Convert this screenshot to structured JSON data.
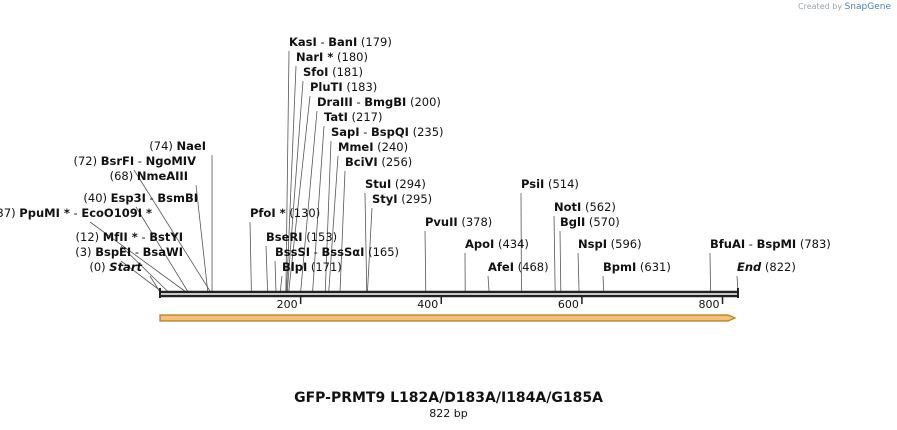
{
  "credit": {
    "prefix": "Created by",
    "brand": "SnapGene"
  },
  "title": "GFP-PRMT9 L182A/D183A/I184A/G185A",
  "length_label": "822 bp",
  "scale": {
    "start": 1,
    "end": 822,
    "ticks": [
      "200",
      "400",
      "600",
      "800"
    ]
  },
  "features": [
    {
      "name": "Start",
      "pos": 0,
      "pos_label": "(0)",
      "style": "italic",
      "side": "left"
    },
    {
      "name": "BspEI",
      "pos": 3,
      "pos_label": "(3)",
      "partner": "BsaWI",
      "side": "left"
    },
    {
      "name": "MfII *",
      "pos": 12,
      "pos_label": "(12)",
      "partner": "BstYI",
      "side": "left"
    },
    {
      "name": "PpuMI *",
      "pos": 37,
      "pos_label": "(37)",
      "partner": "EcoO109I *",
      "side": "left"
    },
    {
      "name": "Esp3I",
      "pos": 40,
      "pos_label": "(40)",
      "partner": "BsmBI",
      "side": "left"
    },
    {
      "name": "NmeAIII",
      "pos": 68,
      "pos_label": "(68)",
      "side": "left"
    },
    {
      "name": "BsrFI",
      "pos": 72,
      "pos_label": "(72)",
      "partner": "NgoMIV",
      "side": "left"
    },
    {
      "name": "NaeI",
      "pos": 74,
      "pos_label": "(74)",
      "side": "left"
    },
    {
      "name": "PfoI *",
      "pos": 130,
      "pos_label": "(130)",
      "side": "right"
    },
    {
      "name": "BseRI",
      "pos": 153,
      "pos_label": "(153)",
      "side": "right"
    },
    {
      "name": "BssSI",
      "pos": 165,
      "pos_label": "(165)",
      "partner": "BssSαI",
      "side": "right"
    },
    {
      "name": "BlpI",
      "pos": 171,
      "pos_label": "(171)",
      "side": "right"
    },
    {
      "name": "KasI",
      "pos": 179,
      "pos_label": "(179)",
      "partner": "BanI",
      "side": "right"
    },
    {
      "name": "NarI *",
      "pos": 180,
      "pos_label": "(180)",
      "side": "right"
    },
    {
      "name": "SfoI",
      "pos": 181,
      "pos_label": "(181)",
      "side": "right"
    },
    {
      "name": "PluTI",
      "pos": 183,
      "pos_label": "(183)",
      "side": "right"
    },
    {
      "name": "DraIII",
      "pos": 200,
      "pos_label": "(200)",
      "partner": "BmgBI",
      "side": "right"
    },
    {
      "name": "TatI",
      "pos": 217,
      "pos_label": "(217)",
      "side": "right"
    },
    {
      "name": "SapI",
      "pos": 235,
      "pos_label": "(235)",
      "partner": "BspQI",
      "side": "right"
    },
    {
      "name": "MmeI",
      "pos": 240,
      "pos_label": "(240)",
      "side": "right"
    },
    {
      "name": "BciVI",
      "pos": 256,
      "pos_label": "(256)",
      "side": "right"
    },
    {
      "name": "StuI",
      "pos": 294,
      "pos_label": "(294)",
      "side": "right"
    },
    {
      "name": "StyI",
      "pos": 295,
      "pos_label": "(295)",
      "side": "right"
    },
    {
      "name": "PvuII",
      "pos": 378,
      "pos_label": "(378)",
      "side": "right"
    },
    {
      "name": "ApoI",
      "pos": 434,
      "pos_label": "(434)",
      "side": "right"
    },
    {
      "name": "AfeI",
      "pos": 468,
      "pos_label": "(468)",
      "side": "right"
    },
    {
      "name": "PsiI",
      "pos": 514,
      "pos_label": "(514)",
      "side": "right"
    },
    {
      "name": "NotI",
      "pos": 562,
      "pos_label": "(562)",
      "side": "right"
    },
    {
      "name": "BglI",
      "pos": 570,
      "pos_label": "(570)",
      "side": "right"
    },
    {
      "name": "NspI",
      "pos": 596,
      "pos_label": "(596)",
      "side": "right"
    },
    {
      "name": "BpmI",
      "pos": 631,
      "pos_label": "(631)",
      "side": "right"
    },
    {
      "name": "BfuAI",
      "pos": 783,
      "pos_label": "(783)",
      "partner": "BspMI",
      "side": "right"
    },
    {
      "name": "End",
      "pos": 822,
      "pos_label": "(822)",
      "style": "italic",
      "side": "right"
    }
  ],
  "colors": {
    "backbone": "#222222",
    "arrow_fill": "#f2c27a",
    "arrow_stroke": "#b7791f",
    "leader": "#555555"
  }
}
